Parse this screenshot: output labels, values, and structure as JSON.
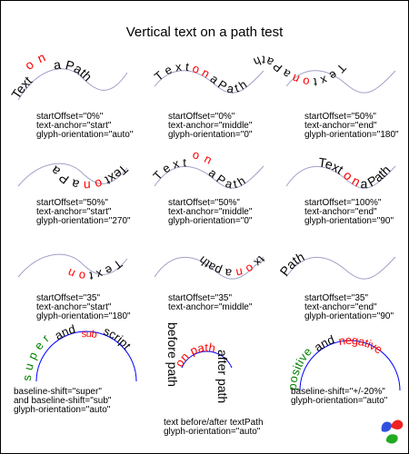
{
  "title": "Vertical text on a path test",
  "colors": {
    "text": "#000000",
    "accent_red": "#ff0000",
    "accent_green": "#008000",
    "path_blue": "#0000ff",
    "path_gray": "#a0a0c8",
    "border": "#000000"
  },
  "panels": [
    {
      "id": "p1",
      "tspans": [
        "Text ",
        "o n",
        " a Path"
      ],
      "lines": [
        "startOffset=\"0%\"",
        "text-anchor=\"start\"",
        "glyph-orientation=\"auto\""
      ]
    },
    {
      "id": "p2",
      "tspans": [
        "T e x t",
        " o n",
        " a P a t h"
      ],
      "lines": [
        "startOffset=\"0%\"",
        "text-anchor=\"middle\"",
        "glyph-orientation=\"0\""
      ]
    },
    {
      "id": "p3",
      "tspans": [
        "T e x t",
        " o n",
        " a P a t h"
      ],
      "lines": [
        "startOffset=\"50%\"",
        "text-anchor=\"end\"",
        "glyph-orientation=\"180\""
      ]
    },
    {
      "id": "p4",
      "tspans": [
        "Text ",
        "o n",
        " a P a"
      ],
      "lines": [
        "startOffset=\"50%\"",
        "text-anchor=\"start\"",
        "glyph-orientation=\"270\""
      ]
    },
    {
      "id": "p5",
      "tspans": [
        "T e x t",
        " o n",
        " a P a t h"
      ],
      "lines": [
        "startOffset=\"50%\"",
        "text-anchor=\"middle\"",
        "glyph-orientation=\"0\""
      ]
    },
    {
      "id": "p6",
      "tspans": [
        "Text ",
        "o n",
        " a Path"
      ],
      "lines": [
        "startOffset=\"100%\"",
        "text-anchor=\"end\"",
        "glyph-orientation=\"90\""
      ]
    },
    {
      "id": "p7",
      "tspans": [
        "T e x t",
        " o n",
        ""
      ],
      "lines": [
        "startOffset=\"35\"",
        "text-anchor=\"start\"",
        "glyph-orientation=\"180\""
      ]
    },
    {
      "id": "p8",
      "tspans": [
        "tx",
        " o n",
        " a path"
      ],
      "lines": [
        "startOffset=\"35\"",
        "text-anchor=\"middle\""
      ]
    },
    {
      "id": "p9",
      "tspans": [
        "Path",
        "",
        ""
      ],
      "lines": [
        "startOffset=\"35\"",
        "text-anchor=\"end\"",
        "glyph-orientation=\"90\""
      ]
    },
    {
      "id": "p10",
      "tspans": [
        "s u p e r",
        "and",
        "sub",
        "script"
      ],
      "lines": [
        "baseline-shift=\"super\"",
        "and baseline-shift=\"sub\"",
        "glyph-orientation=\"auto\""
      ]
    },
    {
      "id": "p11",
      "tspans": [
        "before path",
        "on path",
        "after path"
      ],
      "lines": [
        "text before/after textPath",
        "glyph-orientation=\"auto\""
      ]
    },
    {
      "id": "p12",
      "tspans": [
        "positive",
        "and",
        "negative"
      ],
      "lines": [
        "baseline-shift=\"+/-20%\"",
        "glyph-orientation=\"auto\""
      ]
    }
  ]
}
